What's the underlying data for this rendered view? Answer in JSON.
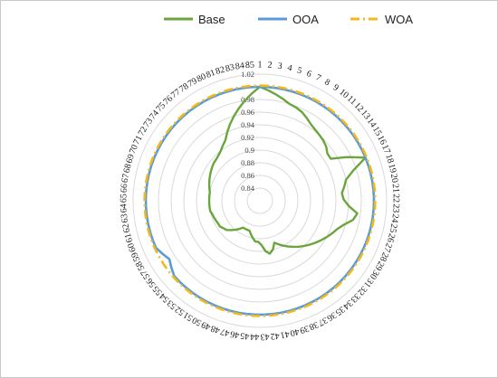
{
  "chart_data": {
    "type": "radar",
    "title": "",
    "categories": [
      "1",
      "2",
      "3",
      "4",
      "5",
      "6",
      "7",
      "8",
      "9",
      "10",
      "11",
      "12",
      "13",
      "14",
      "15",
      "16",
      "17",
      "18",
      "19",
      "20",
      "21",
      "22",
      "23",
      "24",
      "25",
      "26",
      "27",
      "28",
      "29",
      "30",
      "31",
      "32",
      "33",
      "34",
      "35",
      "36",
      "37",
      "38",
      "39",
      "40",
      "41",
      "42",
      "43",
      "44",
      "45",
      "46",
      "47",
      "48",
      "49",
      "50",
      "51",
      "52",
      "53",
      "54",
      "55",
      "56",
      "57",
      "58",
      "59",
      "60",
      "61",
      "62",
      "63",
      "64",
      "65",
      "66",
      "67",
      "68",
      "69",
      "70",
      "71",
      "72",
      "73",
      "74",
      "75",
      "76",
      "77",
      "78",
      "79",
      "80",
      "81",
      "82",
      "83",
      "84",
      "85"
    ],
    "rticks": [
      0.84,
      0.86,
      0.88,
      0.9,
      0.92,
      0.94,
      0.96,
      0.98,
      1.02
    ],
    "rlim": [
      0.82,
      1.02
    ],
    "series": [
      {
        "name": "Base",
        "color": "#6aa63c",
        "style": "solid",
        "values": [
          1.0,
          0.995,
          0.99,
          0.985,
          0.98,
          0.978,
          0.975,
          0.97,
          0.965,
          0.962,
          0.96,
          0.958,
          0.955,
          0.95,
          0.95,
          0.975,
          1.0,
          0.975,
          0.96,
          0.955,
          0.95,
          0.952,
          0.96,
          0.975,
          0.97,
          0.958,
          0.95,
          0.945,
          0.94,
          0.935,
          0.93,
          0.925,
          0.92,
          0.915,
          0.91,
          0.905,
          0.9,
          0.895,
          0.89,
          0.9,
          0.905,
          0.9,
          0.89,
          0.885,
          0.885,
          0.88,
          0.875,
          0.87,
          0.87,
          0.87,
          0.87,
          0.875,
          0.88,
          0.885,
          0.89,
          0.892,
          0.895,
          0.895,
          0.896,
          0.897,
          0.898,
          0.9,
          0.9,
          0.9,
          0.9,
          0.9,
          0.9,
          0.902,
          0.904,
          0.906,
          0.908,
          0.91,
          0.912,
          0.914,
          0.915,
          0.917,
          0.92,
          0.925,
          0.93,
          0.94,
          0.95,
          0.96,
          0.97,
          0.98,
          0.99
        ]
      },
      {
        "name": "OOA",
        "color": "#5b9bd5",
        "style": "solid",
        "values": [
          1.0,
          1.0,
          1.0,
          1.0,
          1.0,
          1.0,
          1.0,
          1.0,
          1.0,
          1.0,
          1.0,
          1.0,
          1.0,
          1.0,
          1.0,
          1.0,
          1.0,
          1.0,
          1.0,
          1.0,
          1.0,
          1.0,
          1.0,
          1.0,
          1.0,
          1.0,
          1.0,
          1.0,
          1.0,
          1.0,
          1.0,
          1.0,
          1.0,
          1.0,
          1.0,
          1.0,
          1.0,
          1.0,
          1.0,
          1.0,
          1.0,
          1.0,
          1.0,
          1.0,
          1.0,
          1.0,
          1.0,
          1.0,
          1.0,
          1.0,
          1.0,
          1.0,
          1.0,
          1.0,
          1.0,
          0.995,
          0.99,
          0.995,
          1.0,
          1.0,
          1.0,
          1.0,
          1.0,
          1.0,
          1.0,
          1.0,
          1.0,
          1.0,
          1.0,
          1.0,
          1.0,
          1.0,
          1.0,
          1.0,
          1.0,
          1.0,
          1.0,
          1.0,
          1.0,
          1.0,
          1.0,
          1.0,
          1.0,
          1.0,
          1.0
        ]
      },
      {
        "name": "WOA",
        "color": "#f2b81d",
        "style": "dashdot",
        "values": [
          1.002,
          1.002,
          1.002,
          1.002,
          1.002,
          1.002,
          1.002,
          1.002,
          1.002,
          1.002,
          1.002,
          1.002,
          1.002,
          1.002,
          1.002,
          1.002,
          1.002,
          1.002,
          1.002,
          1.002,
          1.002,
          1.002,
          1.002,
          1.002,
          1.002,
          1.002,
          1.002,
          1.002,
          1.002,
          1.002,
          1.002,
          1.002,
          1.002,
          1.002,
          1.002,
          1.002,
          1.002,
          1.002,
          1.002,
          1.002,
          1.002,
          1.002,
          1.002,
          1.002,
          1.002,
          1.002,
          1.002,
          1.002,
          1.002,
          1.002,
          1.002,
          1.002,
          1.002,
          1.002,
          1.002,
          1.002,
          1.002,
          1.002,
          1.002,
          1.002,
          1.002,
          1.002,
          1.002,
          1.002,
          1.002,
          1.002,
          1.002,
          1.002,
          1.002,
          1.002,
          1.002,
          1.002,
          1.002,
          1.002,
          1.002,
          1.002,
          1.002,
          1.002,
          1.002,
          1.002,
          1.002,
          1.002,
          1.002,
          1.002,
          1.002
        ]
      }
    ],
    "legend": {
      "position": "top-right"
    },
    "grid": true
  }
}
